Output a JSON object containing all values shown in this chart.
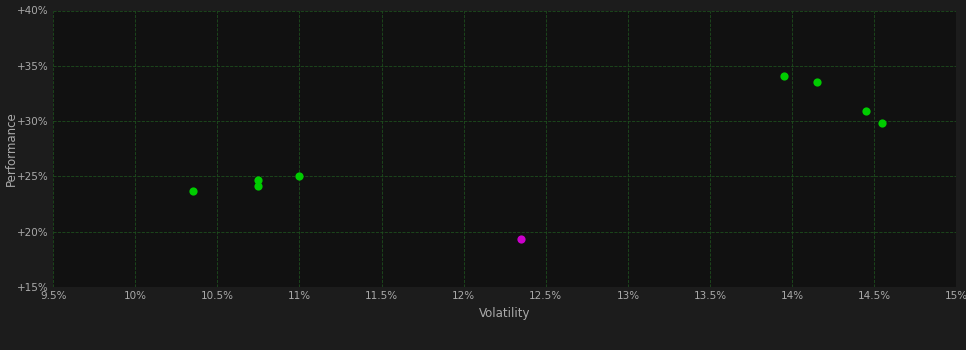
{
  "background_color": "#1c1c1c",
  "plot_bg_color": "#111111",
  "grid_color": "#1e4d1e",
  "text_color": "#aaaaaa",
  "xlabel": "Volatility",
  "ylabel": "Performance",
  "x_min": 0.095,
  "x_max": 0.15,
  "y_min": 0.15,
  "y_max": 0.4,
  "x_ticks": [
    0.095,
    0.1,
    0.105,
    0.11,
    0.115,
    0.12,
    0.125,
    0.13,
    0.135,
    0.14,
    0.145,
    0.15
  ],
  "x_tick_labels": [
    "9.5%",
    "10%",
    "10.5%",
    "11%",
    "11.5%",
    "12%",
    "12.5%",
    "13%",
    "13.5%",
    "14%",
    "14.5%",
    "15%"
  ],
  "y_ticks": [
    0.15,
    0.2,
    0.25,
    0.3,
    0.35,
    0.4
  ],
  "y_tick_labels": [
    "+15%",
    "+20%",
    "+25%",
    "+30%",
    "+35%",
    "+40%"
  ],
  "green_points": [
    [
      0.1035,
      0.237
    ],
    [
      0.1075,
      0.241
    ],
    [
      0.1075,
      0.247
    ],
    [
      0.11,
      0.25
    ],
    [
      0.1395,
      0.341
    ],
    [
      0.1415,
      0.335
    ],
    [
      0.1445,
      0.309
    ],
    [
      0.1455,
      0.298
    ]
  ],
  "magenta_points": [
    [
      0.1235,
      0.193
    ]
  ],
  "point_size": 35,
  "fig_width": 9.66,
  "fig_height": 3.5,
  "dpi": 100
}
